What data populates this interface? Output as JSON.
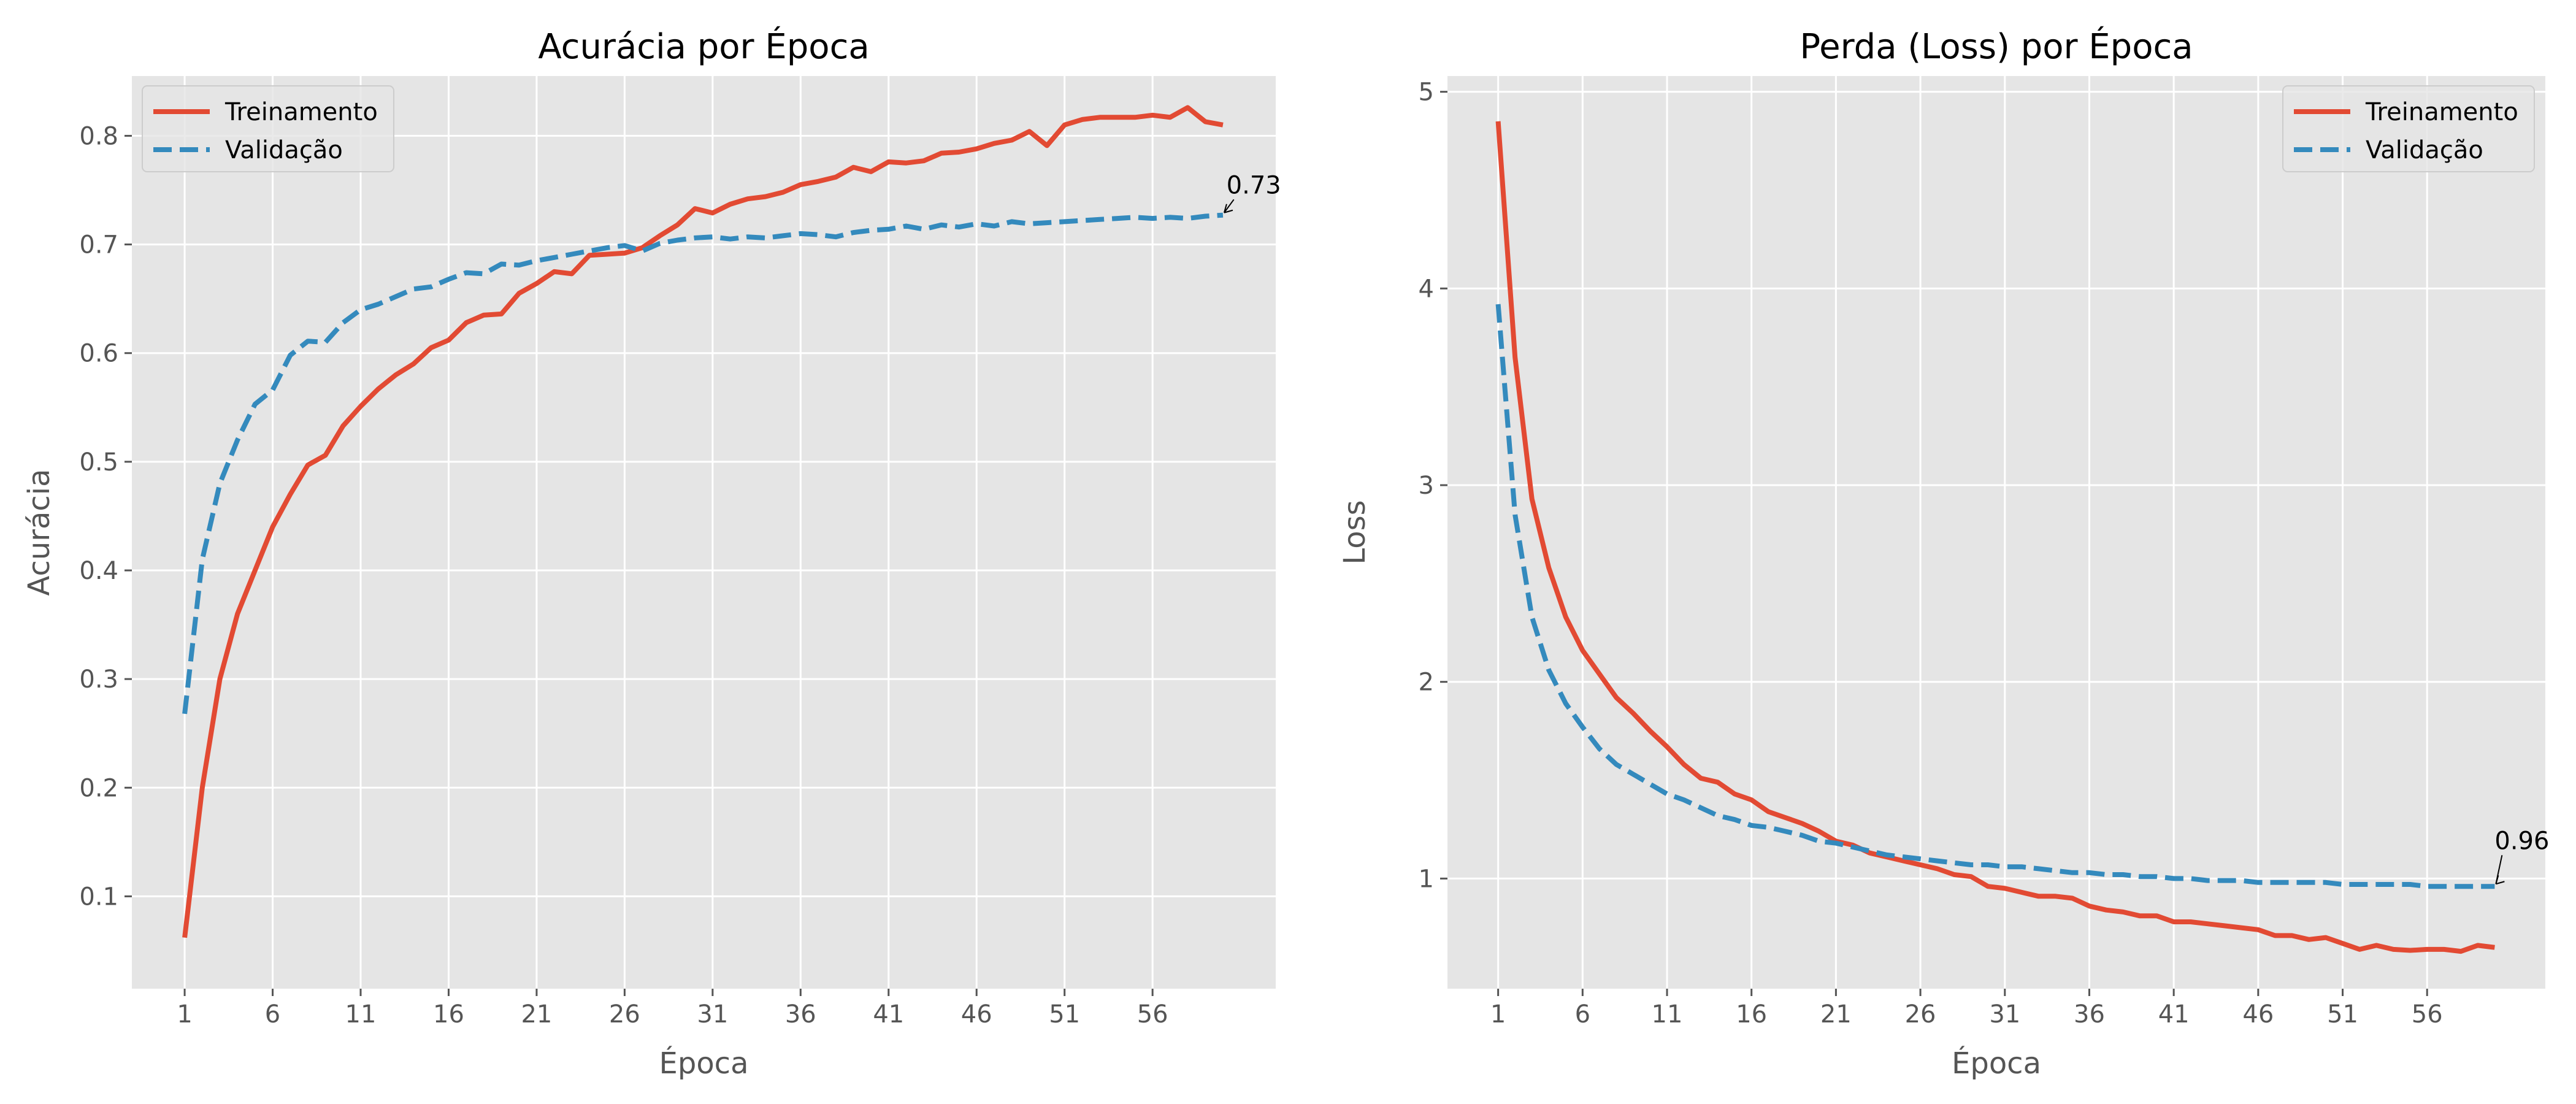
{
  "chart_data": [
    {
      "type": "line",
      "title": "Acurácia por Época",
      "xlabel": "Época",
      "ylabel": "Acurácia",
      "xlim": [
        -2,
        63
      ],
      "ylim": [
        0.015,
        0.855
      ],
      "xticks": [
        1,
        6,
        11,
        16,
        21,
        26,
        31,
        36,
        41,
        46,
        51,
        56
      ],
      "xtick_labels": [
        "1",
        "6",
        "11",
        "16",
        "21",
        "26",
        "31",
        "36",
        "41",
        "46",
        "51",
        "56"
      ],
      "yticks": [
        0.1,
        0.2,
        0.3,
        0.4,
        0.5,
        0.6,
        0.7,
        0.8
      ],
      "ytick_labels": [
        "0.1",
        "0.2",
        "0.3",
        "0.4",
        "0.5",
        "0.6",
        "0.7",
        "0.8"
      ],
      "grid": true,
      "legend_position": "upper left",
      "x": [
        1,
        2,
        3,
        4,
        5,
        6,
        7,
        8,
        9,
        10,
        11,
        12,
        13,
        14,
        15,
        16,
        17,
        18,
        19,
        20,
        21,
        22,
        23,
        24,
        25,
        26,
        27,
        28,
        29,
        30,
        31,
        32,
        33,
        34,
        35,
        36,
        37,
        38,
        39,
        40,
        41,
        42,
        43,
        44,
        45,
        46,
        47,
        48,
        49,
        50,
        51,
        52,
        53,
        54,
        55,
        56,
        57,
        58,
        59,
        60
      ],
      "series": [
        {
          "name": "Treinamento",
          "color": "#E24A33",
          "style": "solid",
          "values": [
            0.062,
            0.2,
            0.3,
            0.36,
            0.4,
            0.44,
            0.47,
            0.497,
            0.506,
            0.533,
            0.551,
            0.567,
            0.58,
            0.59,
            0.605,
            0.612,
            0.628,
            0.635,
            0.636,
            0.655,
            0.664,
            0.675,
            0.673,
            0.69,
            0.691,
            0.692,
            0.697,
            0.708,
            0.718,
            0.733,
            0.729,
            0.737,
            0.742,
            0.744,
            0.748,
            0.755,
            0.758,
            0.762,
            0.771,
            0.767,
            0.776,
            0.775,
            0.777,
            0.784,
            0.785,
            0.788,
            0.793,
            0.796,
            0.804,
            0.791,
            0.81,
            0.815,
            0.817,
            0.817,
            0.817,
            0.819,
            0.817,
            0.826,
            0.813,
            0.81
          ]
        },
        {
          "name": "Validação",
          "color": "#348ABD",
          "style": "dashed",
          "values": [
            0.268,
            0.41,
            0.48,
            0.52,
            0.553,
            0.566,
            0.598,
            0.611,
            0.61,
            0.628,
            0.64,
            0.645,
            0.652,
            0.659,
            0.661,
            0.668,
            0.674,
            0.673,
            0.682,
            0.681,
            0.685,
            0.688,
            0.691,
            0.694,
            0.697,
            0.699,
            0.694,
            0.701,
            0.704,
            0.706,
            0.707,
            0.705,
            0.707,
            0.706,
            0.708,
            0.71,
            0.709,
            0.707,
            0.711,
            0.713,
            0.714,
            0.717,
            0.714,
            0.718,
            0.716,
            0.719,
            0.717,
            0.721,
            0.719,
            0.72,
            0.721,
            0.722,
            0.723,
            0.724,
            0.725,
            0.724,
            0.725,
            0.724,
            0.726,
            0.727
          ]
        }
      ],
      "annotation": {
        "text": "0.73",
        "x": 60,
        "y": 0.727,
        "text_x": 60.2,
        "text_y": 0.747
      }
    },
    {
      "type": "line",
      "title": "Perda (Loss) por Época",
      "xlabel": "Época",
      "ylabel": "Loss",
      "xlim": [
        -2,
        63
      ],
      "ylim": [
        0.44,
        5.08
      ],
      "xticks": [
        1,
        6,
        11,
        16,
        21,
        26,
        31,
        36,
        41,
        46,
        51,
        56
      ],
      "xtick_labels": [
        "1",
        "6",
        "11",
        "16",
        "21",
        "26",
        "31",
        "36",
        "41",
        "46",
        "51",
        "56"
      ],
      "yticks": [
        1,
        2,
        3,
        4,
        5
      ],
      "ytick_labels": [
        "1",
        "2",
        "3",
        "4",
        "5"
      ],
      "grid": true,
      "legend_position": "upper right",
      "x": [
        1,
        2,
        3,
        4,
        5,
        6,
        7,
        8,
        9,
        10,
        11,
        12,
        13,
        14,
        15,
        16,
        17,
        18,
        19,
        20,
        21,
        22,
        23,
        24,
        25,
        26,
        27,
        28,
        29,
        30,
        31,
        32,
        33,
        34,
        35,
        36,
        37,
        38,
        39,
        40,
        41,
        42,
        43,
        44,
        45,
        46,
        47,
        48,
        49,
        50,
        51,
        52,
        53,
        54,
        55,
        56,
        57,
        58,
        59,
        60
      ],
      "series": [
        {
          "name": "Treinamento",
          "color": "#E24A33",
          "style": "solid",
          "values": [
            4.85,
            3.65,
            2.93,
            2.58,
            2.33,
            2.16,
            2.04,
            1.92,
            1.84,
            1.75,
            1.67,
            1.58,
            1.51,
            1.49,
            1.43,
            1.4,
            1.34,
            1.31,
            1.28,
            1.24,
            1.19,
            1.17,
            1.13,
            1.11,
            1.09,
            1.07,
            1.05,
            1.02,
            1.01,
            0.96,
            0.95,
            0.93,
            0.91,
            0.91,
            0.9,
            0.86,
            0.84,
            0.83,
            0.81,
            0.81,
            0.78,
            0.78,
            0.77,
            0.76,
            0.75,
            0.74,
            0.71,
            0.71,
            0.69,
            0.7,
            0.67,
            0.64,
            0.66,
            0.64,
            0.635,
            0.64,
            0.64,
            0.63,
            0.66,
            0.65
          ]
        },
        {
          "name": "Validação",
          "color": "#348ABD",
          "style": "dashed",
          "values": [
            3.92,
            2.85,
            2.33,
            2.06,
            1.89,
            1.77,
            1.66,
            1.58,
            1.53,
            1.48,
            1.43,
            1.4,
            1.36,
            1.32,
            1.3,
            1.27,
            1.26,
            1.24,
            1.22,
            1.19,
            1.18,
            1.16,
            1.14,
            1.12,
            1.11,
            1.1,
            1.09,
            1.08,
            1.07,
            1.07,
            1.06,
            1.06,
            1.05,
            1.04,
            1.03,
            1.03,
            1.02,
            1.02,
            1.01,
            1.01,
            1.0,
            1.0,
            0.99,
            0.99,
            0.99,
            0.98,
            0.98,
            0.98,
            0.98,
            0.98,
            0.97,
            0.97,
            0.97,
            0.97,
            0.97,
            0.96,
            0.96,
            0.96,
            0.96,
            0.96
          ]
        }
      ],
      "annotation": {
        "text": "0.96",
        "x": 60,
        "y": 0.96,
        "text_x": 60.0,
        "text_y": 1.15
      }
    }
  ]
}
